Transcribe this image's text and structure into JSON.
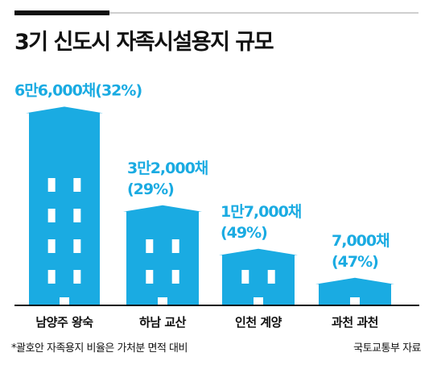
{
  "title": "3기 신도시 자족시설용지 규모",
  "footnote": "*괄호안 자족용지 비율은 가처분 면적 대비",
  "source": "국토교통부 자료",
  "colors": {
    "bar": "#1aabe2",
    "label": "#1aabe2",
    "window": "#ffffff",
    "baseline": "#111111"
  },
  "chart_data": {
    "type": "bar",
    "title": "3기 신도시 자족시설용지 규모",
    "categories": [
      "남양주 왕숙",
      "하남 교산",
      "인천 계양",
      "과천 과천"
    ],
    "values": [
      66000,
      32000,
      17000,
      7000
    ],
    "unit": "채",
    "value_labels": [
      "6만6,000채(32%)",
      "3만2,000채",
      "1만7,000채",
      "7,000채"
    ],
    "percent_labels": [
      "",
      "(29%)",
      "(49%)",
      "(47%)"
    ],
    "ratios_percent": [
      32,
      29,
      49,
      47
    ]
  }
}
